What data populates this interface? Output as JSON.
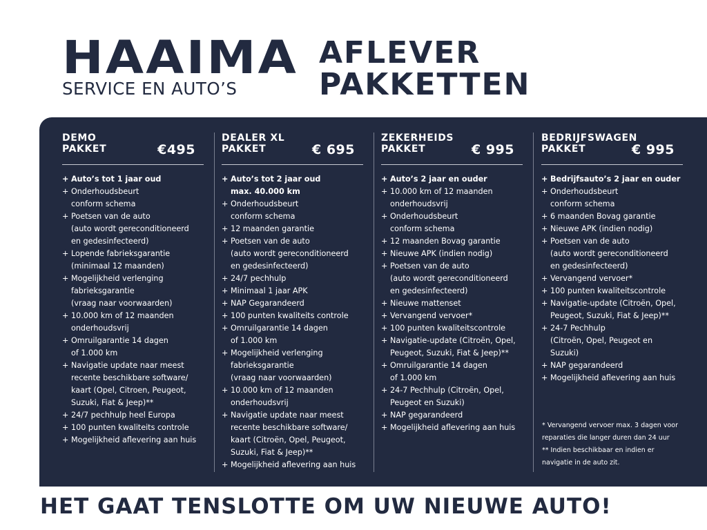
{
  "logo": {
    "name": "HAAIMA",
    "tagline": "SERVICE EN AUTO’S"
  },
  "title": {
    "line1": "AFLEVER",
    "line2": "PAKKETTEN"
  },
  "colors": {
    "navy": "#222a40",
    "white": "#ffffff"
  },
  "packages": [
    {
      "name": "DEMO\nPAKKET",
      "price": "€495",
      "items": [
        "Auto’s tot 1 jaar oud",
        "Onderhoudsbeurt\nconform schema",
        "Poetsen van de auto\n(auto wordt gereconditioneerd\nen gedesinfecteerd)",
        "Lopende fabrieksgarantie\n(minimaal 12 maanden)",
        "Mogelijkheid verlenging\nfabrieksgarantie\n(vraag naar voorwaarden)",
        "10.000 km of 12 maanden\nonderhoudsvrij",
        "Omruilgarantie 14 dagen\nof 1.000 km",
        "Navigatie update naar meest\nrecente beschikbare software/\nkaart (Opel, Citroen,  Peugeot,\nSuzuki, Fiat & Jeep)**",
        "24/7 pechhulp heel Europa",
        "100 punten kwaliteits controle",
        "Mogelijkheid aflevering aan huis"
      ]
    },
    {
      "name": "DEALER XL\nPAKKET",
      "price": "€ 695",
      "items": [
        "Auto’s tot 2 jaar oud\nmax. 40.000 km",
        "Onderhoudsbeurt\nconform schema",
        "12 maanden garantie",
        "Poetsen van de auto\n(auto wordt gereconditioneerd\nen gedesinfecteerd)",
        "24/7 pechhulp",
        "Minimaal 1 jaar APK",
        "NAP Gegarandeerd",
        "100 punten kwaliteits controle",
        "Omruilgarantie 14 dagen\nof 1.000 km",
        "Mogelijkheid verlenging\nfabrieksgarantie\n(vraag naar voorwaarden)",
        "10.000 km of 12 maanden\nonderhoudsvrij",
        "Navigatie update naar meest\nrecente beschikbare software/\nkaart (Citroën, Opel, Peugeot,\nSuzuki, Fiat & Jeep)**",
        "Mogelijkheid aflevering aan huis"
      ]
    },
    {
      "name": "ZEKERHEIDS\nPAKKET",
      "price": "€ 995",
      "items": [
        "Auto’s 2 jaar en ouder",
        "10.000 km of 12 maanden\nonderhoudsvrij",
        "Onderhoudsbeurt\nconform schema",
        "12 maanden Bovag garantie",
        "Nieuwe APK (indien nodig)",
        "Poetsen van de auto\n(auto wordt gereconditioneerd\nen gedesinfecteerd)",
        "Nieuwe mattenset",
        "Vervangend vervoer*",
        "100 punten kwaliteitscontrole",
        "Navigatie-update (Citroën, Opel,\nPeugeot, Suzuki, Fiat & Jeep)**",
        "Omruilgarantie 14 dagen\nof 1.000 km",
        "24-7 Pechhulp (Citroën, Opel,\nPeugeot en Suzuki)",
        "NAP gegarandeerd",
        "Mogelijkheid aflevering aan huis"
      ]
    },
    {
      "name": "BEDRIJFSWAGEN\nPAKKET",
      "price": "€ 995",
      "items": [
        "Bedrijfsauto’s 2 jaar en ouder",
        "Onderhoudsbeurt\nconform schema",
        "6 maanden Bovag garantie",
        "Nieuwe APK (indien nodig)",
        "Poetsen van de auto\n(auto wordt gereconditioneerd\nen gedesinfecteerd)",
        "Vervangend vervoer*",
        "100 punten kwaliteitscontrole",
        "Navigatie-update (Citroën, Opel,\nPeugeot, Suzuki, Fiat & Jeep)**",
        "24-7 Pechhulp\n(Citroën, Opel, Peugeot en Suzuki)",
        "NAP gegarandeerd",
        "Mogelijkheid aflevering aan huis"
      ]
    }
  ],
  "footnotes": {
    "note1": "* Vervangend vervoer max. 3 dagen voor\n   reparaties die langer duren dan 24 uur",
    "note2": "** Indien beschikbaar en indien er\n     navigatie in de auto zit."
  },
  "slogan": "HET GAAT TENSLOTTE OM UW NIEUWE AUTO!"
}
